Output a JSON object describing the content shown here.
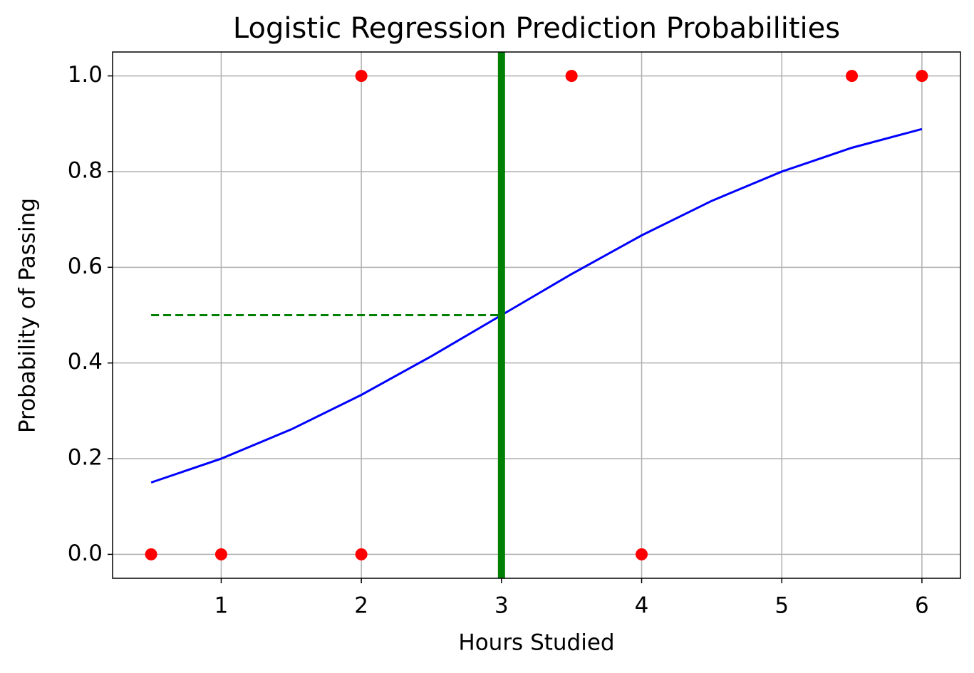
{
  "chart_data": {
    "type": "scatter",
    "title": "Logistic Regression Prediction Probabilities",
    "xlabel": "Hours Studied",
    "ylabel": "Probability of Passing",
    "xlim": [
      0.225,
      6.275
    ],
    "ylim": [
      -0.05,
      1.05
    ],
    "xticks": [
      1,
      2,
      3,
      4,
      5,
      6
    ],
    "yticks": [
      {
        "value": 0,
        "label": "0.0"
      },
      0.2,
      0.4,
      0.6,
      0.8,
      {
        "value": 1,
        "label": "1.0"
      }
    ],
    "grid": true,
    "points": {
      "color": "#ff0000",
      "x": [
        0.5,
        1,
        2,
        2,
        3.5,
        4,
        5.5,
        6
      ],
      "values": [
        0,
        0,
        0,
        1,
        1,
        0,
        1,
        1
      ]
    },
    "curve": {
      "color": "#0000ff",
      "x": [
        0.5,
        1,
        1.5,
        2,
        2.5,
        3,
        3.5,
        4,
        4.5,
        5,
        5.5,
        6
      ],
      "values": [
        0.1502,
        0.2,
        0.2612,
        0.3333,
        0.4142,
        0.5,
        0.5858,
        0.6667,
        0.7388,
        0.8,
        0.8498,
        0.8889
      ]
    },
    "threshold_x": {
      "color": "#008000",
      "x": 3
    },
    "threshold_y": {
      "color": "#008000",
      "y": 0.5,
      "x": [
        0.5,
        3
      ]
    }
  }
}
